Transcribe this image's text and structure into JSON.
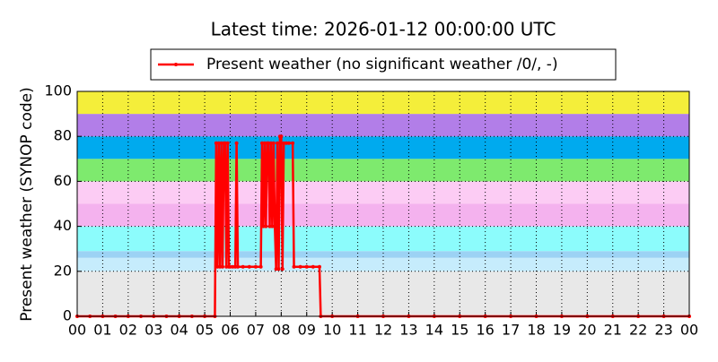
{
  "chart_data": {
    "type": "line",
    "title": "Latest time: 2026-01-12 00:00:00 UTC",
    "y_label": "Present weather (SYNOP code)",
    "legend": "top",
    "grid": true,
    "xlim": [
      0,
      24
    ],
    "ylim": [
      0,
      100
    ],
    "yticks": [
      0,
      20,
      40,
      60,
      80,
      100
    ],
    "xticks": [
      {
        "value": 0,
        "label": "00"
      },
      {
        "value": 1,
        "label": "01"
      },
      {
        "value": 2,
        "label": "02"
      },
      {
        "value": 3,
        "label": "03"
      },
      {
        "value": 4,
        "label": "04"
      },
      {
        "value": 5,
        "label": "05"
      },
      {
        "value": 6,
        "label": "06"
      },
      {
        "value": 7,
        "label": "07"
      },
      {
        "value": 8,
        "label": "08"
      },
      {
        "value": 9,
        "label": "09"
      },
      {
        "value": 10,
        "label": "10"
      },
      {
        "value": 11,
        "label": "11"
      },
      {
        "value": 12,
        "label": "12"
      },
      {
        "value": 13,
        "label": "13"
      },
      {
        "value": 14,
        "label": "14"
      },
      {
        "value": 15,
        "label": "15"
      },
      {
        "value": 16,
        "label": "16"
      },
      {
        "value": 17,
        "label": "17"
      },
      {
        "value": 18,
        "label": "18"
      },
      {
        "value": 19,
        "label": "19"
      },
      {
        "value": 20,
        "label": "20"
      },
      {
        "value": 21,
        "label": "21"
      },
      {
        "value": 22,
        "label": "22"
      },
      {
        "value": 23,
        "label": "23"
      },
      {
        "value": 24,
        "label": "00"
      }
    ],
    "bands": [
      {
        "from": 0,
        "to": 20,
        "color": "#e8e8e8"
      },
      {
        "from": 20,
        "to": 26,
        "color": "#c6ecfc"
      },
      {
        "from": 26,
        "to": 29,
        "color": "#9cd2f4"
      },
      {
        "from": 29,
        "to": 40,
        "color": "#8cfcfc"
      },
      {
        "from": 40,
        "to": 50,
        "color": "#f4b2ee"
      },
      {
        "from": 50,
        "to": 60,
        "color": "#fcccf4"
      },
      {
        "from": 60,
        "to": 70,
        "color": "#7eea6e"
      },
      {
        "from": 70,
        "to": 80,
        "color": "#00aaee"
      },
      {
        "from": 80,
        "to": 90,
        "color": "#b27ee8"
      },
      {
        "from": 90,
        "to": 100,
        "color": "#f4ee3a"
      }
    ],
    "series": [
      {
        "name": "Present weather (no significant weather /0/, -)",
        "color": "#ff0000",
        "x": [
          0,
          0.5,
          1,
          1.5,
          2,
          2.5,
          3,
          3.5,
          4,
          4.5,
          5,
          5.4,
          5.45,
          5.5,
          5.55,
          5.6,
          5.65,
          5.7,
          5.75,
          5.8,
          5.85,
          5.9,
          5.95,
          6.0,
          6.1,
          6.2,
          6.25,
          6.3,
          6.5,
          6.75,
          7.0,
          7.2,
          7.25,
          7.3,
          7.35,
          7.4,
          7.45,
          7.5,
          7.55,
          7.6,
          7.65,
          7.7,
          7.75,
          7.8,
          7.85,
          7.9,
          7.95,
          8.0,
          8.05,
          8.1,
          8.2,
          8.3,
          8.45,
          8.5,
          8.75,
          9.0,
          9.25,
          9.5,
          9.55,
          10,
          11,
          12,
          13,
          14,
          15,
          16,
          17,
          18,
          19,
          20,
          21,
          22,
          23,
          24
        ],
        "values": [
          0,
          0,
          0,
          0,
          0,
          0,
          0,
          0,
          0,
          0,
          0,
          0,
          77,
          22,
          77,
          22,
          77,
          22,
          77,
          77,
          22,
          77,
          22,
          22,
          22,
          22,
          77,
          22,
          22,
          22,
          22,
          22,
          77,
          40,
          77,
          40,
          77,
          77,
          40,
          77,
          40,
          77,
          40,
          21,
          77,
          21,
          80,
          80,
          21,
          77,
          77,
          77,
          77,
          22,
          22,
          22,
          22,
          22,
          0,
          0,
          0,
          0,
          0,
          0,
          0,
          0,
          0,
          0,
          0,
          0,
          0,
          0,
          0,
          0
        ]
      }
    ]
  }
}
